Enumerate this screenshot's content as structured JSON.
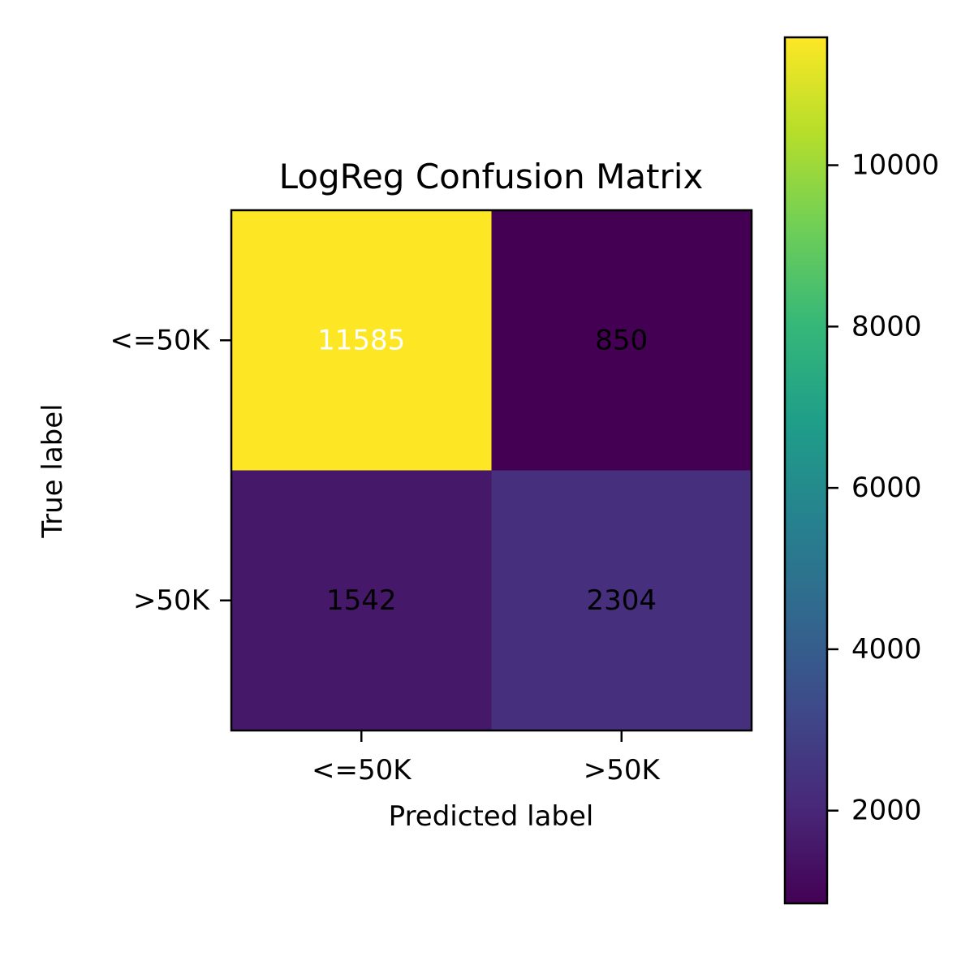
{
  "chart_data": {
    "type": "heatmap",
    "title": "LogReg Confusion Matrix",
    "xlabel": "Predicted label",
    "ylabel": "True label",
    "x_categories": [
      "<=50K",
      ">50K"
    ],
    "y_categories": [
      "<=50K",
      ">50K"
    ],
    "values": [
      [
        11585,
        850
      ],
      [
        1542,
        2304
      ]
    ],
    "colormap": "viridis",
    "colorbar": {
      "range": [
        850,
        11585
      ],
      "ticks": [
        2000,
        4000,
        6000,
        8000,
        10000
      ],
      "tick_labels": [
        "2000",
        "4000",
        "6000",
        "8000",
        "10000"
      ]
    },
    "cell_label_colors": [
      [
        "#ffffff",
        "#000000"
      ],
      [
        "#000000",
        "#000000"
      ]
    ]
  }
}
